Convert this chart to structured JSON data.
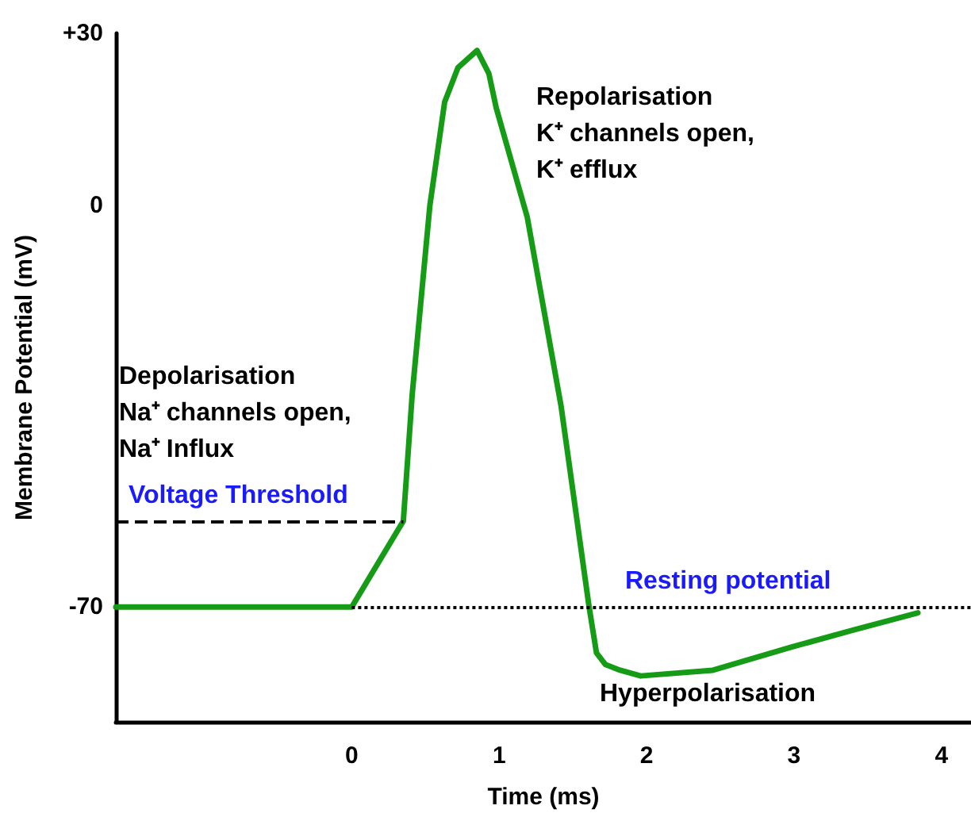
{
  "chart_data": {
    "type": "line",
    "xlabel": "Time (ms)",
    "ylabel": "Membrane Potential (mV)",
    "x": [
      -1.6,
      0,
      0.35,
      0.41,
      0.53,
      0.63,
      0.72,
      0.85,
      0.93,
      0.98,
      1.19,
      1.42,
      1.61,
      1.66,
      1.72,
      1.82,
      1.96,
      2.45,
      2.98,
      3.4,
      3.84
    ],
    "series": [
      {
        "color": "#169b16",
        "values": [
          -70,
          -70,
          -55,
          -33,
          0,
          18,
          24,
          27,
          23,
          17,
          -2,
          -35,
          -70,
          -78,
          -80,
          -81,
          -82,
          -81,
          -77,
          -74,
          -71
        ]
      }
    ],
    "xlim": [
      -1.6,
      4.2
    ],
    "ylim": [
      -90,
      30
    ],
    "xticks": [
      0,
      1,
      2,
      3,
      4
    ],
    "yticks": [
      {
        "value": 30,
        "label": "+30"
      },
      0,
      -70
    ],
    "ref_lines": [
      {
        "axis": "y",
        "value": -55,
        "label": "Voltage Threshold",
        "color": "#000000",
        "line_style": "dashed"
      },
      {
        "axis": "y",
        "value": -70,
        "label": "Resting potential",
        "color": "#000000",
        "line_style": "dotted"
      }
    ],
    "annotations": [
      "Depolarisation\nNa⁺ channels open,\nNa⁺ Influx",
      "Repolarisation\nK⁺ channels open,\nK⁺ efflux",
      "Hyperpolarisation"
    ],
    "grid": false,
    "marker": "none",
    "line_style": "solid"
  }
}
